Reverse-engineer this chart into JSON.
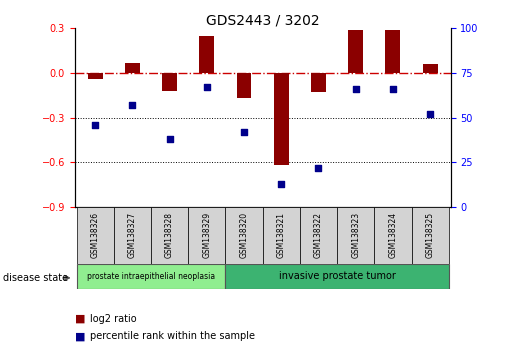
{
  "title": "GDS2443 / 3202",
  "samples": [
    "GSM138326",
    "GSM138327",
    "GSM138328",
    "GSM138329",
    "GSM138320",
    "GSM138321",
    "GSM138322",
    "GSM138323",
    "GSM138324",
    "GSM138325"
  ],
  "log2_ratio": [
    -0.04,
    0.07,
    -0.12,
    0.25,
    -0.17,
    -0.62,
    -0.13,
    0.29,
    0.29,
    0.06
  ],
  "percentile_rank": [
    46,
    57,
    38,
    67,
    42,
    13,
    22,
    66,
    66,
    52
  ],
  "ylim_left": [
    -0.9,
    0.3
  ],
  "yticks_left": [
    -0.9,
    -0.6,
    -0.3,
    0.0,
    0.3
  ],
  "ylim_right": [
    0,
    100
  ],
  "yticks_right": [
    0,
    25,
    50,
    75,
    100
  ],
  "bar_color": "#8B0000",
  "dot_color": "#00008B",
  "zero_line_color": "#CC0000",
  "grid_color": "#000000",
  "group1_color": "#90EE90",
  "group2_color": "#3CB371",
  "group1_label": "prostate intraepithelial neoplasia",
  "group2_label": "invasive prostate tumor",
  "group1_count": 4,
  "group2_count": 6,
  "disease_state_label": "disease state",
  "legend_red_label": "log2 ratio",
  "legend_blue_label": "percentile rank within the sample",
  "sample_box_color": "#d3d3d3",
  "title_fontsize": 10,
  "tick_fontsize": 7,
  "label_fontsize": 7,
  "sample_fontsize": 5.5
}
